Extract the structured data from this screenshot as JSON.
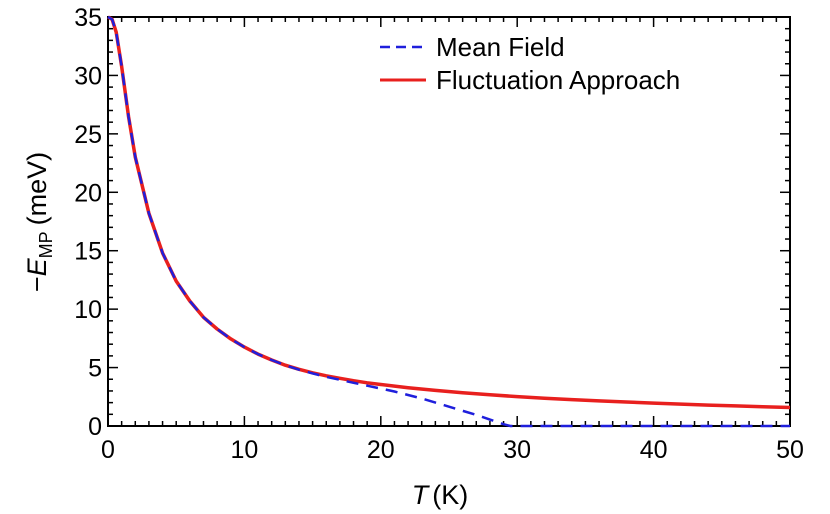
{
  "chart_data": {
    "type": "line",
    "xlabel_symbol": "T",
    "xlabel_unit": "(K)",
    "ylabel_prefix": "−",
    "ylabel_symbol": "E",
    "ylabel_subscript": "MP",
    "ylabel_unit": "(meV)",
    "xlim": [
      0,
      50
    ],
    "ylim": [
      0,
      35
    ],
    "xticks": [
      0,
      10,
      20,
      30,
      40,
      50
    ],
    "yticks": [
      0,
      5,
      10,
      15,
      20,
      25,
      30,
      35
    ],
    "grid": false,
    "legend_position": "top-right",
    "series": [
      {
        "name": "Mean Field",
        "color": "#1f1fdc",
        "style": "dashed",
        "x": [
          0,
          0.3,
          0.6,
          1,
          1.5,
          2,
          3,
          4,
          5,
          6,
          7,
          8,
          9,
          10,
          11,
          12,
          13,
          14,
          15,
          16,
          17,
          18,
          19,
          20,
          21,
          22,
          23,
          24,
          25,
          26,
          27,
          28,
          29,
          29.5,
          30,
          35,
          40,
          45,
          50
        ],
        "y": [
          35,
          34.8,
          33.7,
          30.8,
          26.5,
          23,
          18.2,
          14.8,
          12.4,
          10.7,
          9.3,
          8.3,
          7.45,
          6.75,
          6.15,
          5.65,
          5.2,
          4.82,
          4.5,
          4.2,
          3.95,
          3.7,
          3.45,
          3.2,
          2.95,
          2.65,
          2.35,
          2.0,
          1.65,
          1.3,
          0.95,
          0.55,
          0.15,
          0,
          0,
          0,
          0,
          0,
          0
        ]
      },
      {
        "name": "Fluctuation Approach",
        "color": "#e8201e",
        "style": "solid",
        "x": [
          0,
          0.3,
          0.6,
          1,
          1.5,
          2,
          3,
          4,
          5,
          6,
          7,
          8,
          9,
          10,
          11,
          12,
          13,
          14,
          15,
          16,
          17,
          18,
          19,
          20,
          22,
          24,
          26,
          28,
          30,
          32,
          34,
          36,
          38,
          40,
          42,
          44,
          46,
          48,
          50
        ],
        "y": [
          35,
          34.8,
          33.7,
          30.8,
          26.5,
          23,
          18.2,
          14.8,
          12.4,
          10.7,
          9.3,
          8.3,
          7.45,
          6.75,
          6.15,
          5.65,
          5.2,
          4.85,
          4.55,
          4.3,
          4.08,
          3.88,
          3.7,
          3.55,
          3.28,
          3.05,
          2.85,
          2.67,
          2.52,
          2.38,
          2.26,
          2.15,
          2.05,
          1.96,
          1.87,
          1.79,
          1.72,
          1.65,
          1.58
        ]
      }
    ]
  }
}
